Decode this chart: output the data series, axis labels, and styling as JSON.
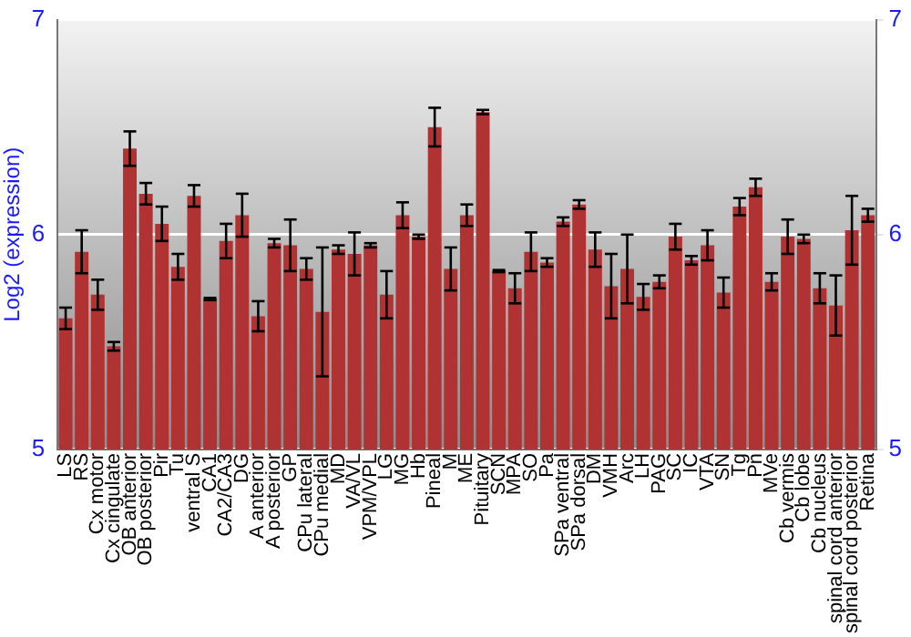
{
  "chart_data": {
    "type": "bar",
    "ylabel": "Log2 (expression)",
    "categories": [
      "LS",
      "RS",
      "Cx motor",
      "Cx cingulate",
      "OB anterior",
      "OB posterior",
      "Pir",
      "Tu",
      "ventral S",
      "CA1",
      "CA2/CA3",
      "DG",
      "A anterior",
      "A posterior",
      "GP",
      "CPu lateral",
      "CPu medial",
      "MD",
      "VA/VL",
      "VPM/VPL",
      "LG",
      "MG",
      "Hb",
      "Pineal",
      "M",
      "ME",
      "Pituitary",
      "SCN",
      "MPA",
      "SO",
      "Pa",
      "SPa ventral",
      "SPa dorsal",
      "DM",
      "VMH",
      "Arc",
      "LH",
      "PAG",
      "SC",
      "IC",
      "VTA",
      "SN",
      "Tg",
      "Pn",
      "MVe",
      "Cb vermis",
      "Cb lobe",
      "Cb nucleus",
      "spinal cord anterior",
      "spinal cord posterior",
      "Retina"
    ],
    "values": [
      5.61,
      5.92,
      5.72,
      5.48,
      6.4,
      6.19,
      6.05,
      5.85,
      6.18,
      5.7,
      5.97,
      6.09,
      5.62,
      5.96,
      5.95,
      5.84,
      5.64,
      5.93,
      5.91,
      5.95,
      5.72,
      6.09,
      5.99,
      6.5,
      5.84,
      6.09,
      6.57,
      5.83,
      5.75,
      5.92,
      5.87,
      6.06,
      6.14,
      5.93,
      5.76,
      5.84,
      5.71,
      5.78,
      5.99,
      5.88,
      5.95,
      5.73,
      6.13,
      6.22,
      5.78,
      5.99,
      5.98,
      5.75,
      5.67,
      6.02,
      6.09
    ],
    "errors": [
      0.05,
      0.1,
      0.07,
      0.02,
      0.08,
      0.05,
      0.08,
      0.06,
      0.05,
      0.005,
      0.08,
      0.1,
      0.07,
      0.02,
      0.12,
      0.05,
      0.3,
      0.02,
      0.1,
      0.01,
      0.11,
      0.06,
      0.01,
      0.09,
      0.1,
      0.05,
      0.01,
      0.005,
      0.07,
      0.09,
      0.02,
      0.02,
      0.02,
      0.08,
      0.15,
      0.16,
      0.06,
      0.03,
      0.06,
      0.02,
      0.07,
      0.07,
      0.04,
      0.04,
      0.04,
      0.08,
      0.02,
      0.07,
      0.14,
      0.16,
      0.03
    ],
    "color": "#b03232",
    "ylim": [
      5,
      7
    ],
    "yticks": [
      5,
      6,
      7
    ],
    "y2lim": [
      5,
      7
    ],
    "y2ticks": [
      5,
      6,
      7
    ],
    "grid": "y",
    "legend": false
  }
}
